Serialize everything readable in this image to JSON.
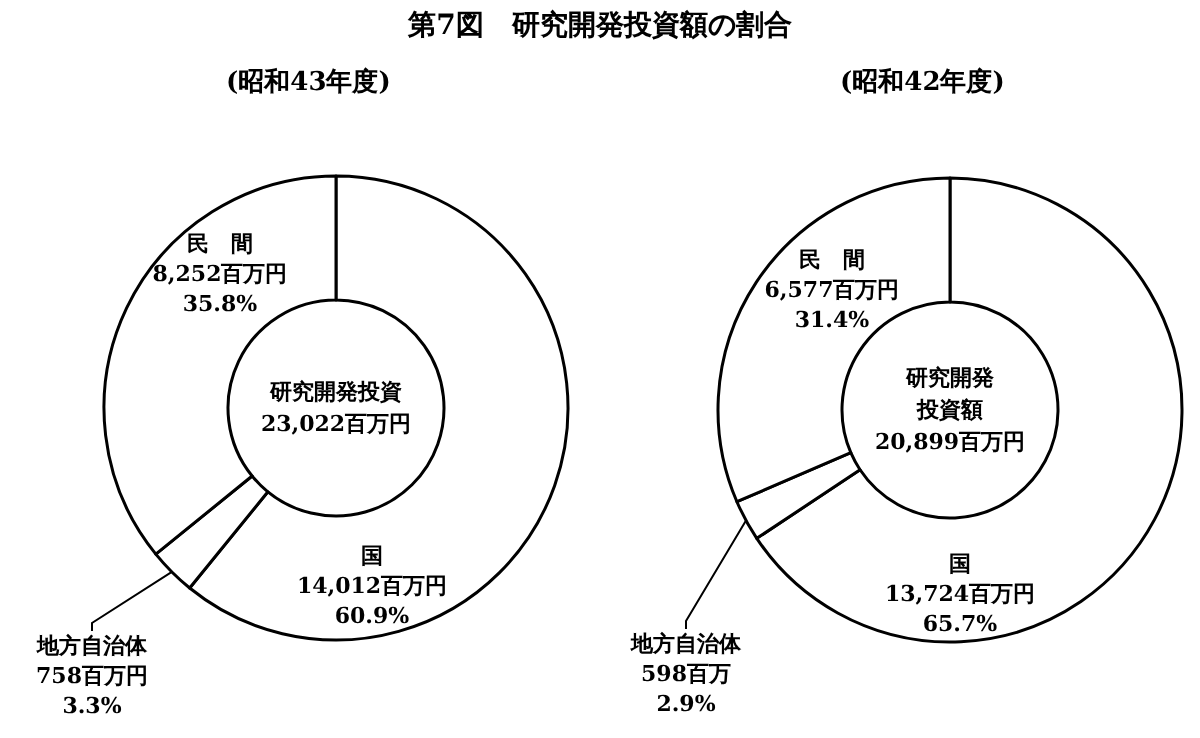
{
  "chart_data": [
    {
      "type": "donut",
      "title": "第7図　研究開発投資額の割合",
      "subtitle": "(昭和43年度)",
      "categories": [
        "国",
        "地方自治体",
        "民　間"
      ],
      "values": [
        14012,
        758,
        8252
      ],
      "value_labels": [
        "14,012百万円\n60.9%",
        "758百万円\n3.3%",
        "8,252百万円\n35.8%"
      ],
      "colors": [
        "#ffffff",
        "#ffffff",
        "#ffffff"
      ],
      "annotations": [
        "研究開発投資",
        "23,022百万円"
      ],
      "legend": false
    },
    {
      "type": "donut",
      "subtitle": "(昭和42年度)",
      "categories": [
        "国",
        "地方自治体",
        "民　間"
      ],
      "values": [
        13724,
        598,
        6577
      ],
      "value_labels": [
        "13,724百万円\n65.7%",
        "598百万\n2.9%",
        "6,577百万円\n31.4%"
      ],
      "colors": [
        "#ffffff",
        "#ffffff",
        "#ffffff"
      ],
      "annotations": [
        "研究開発",
        "投資額",
        "20,899百万円"
      ],
      "legend": false
    }
  ]
}
